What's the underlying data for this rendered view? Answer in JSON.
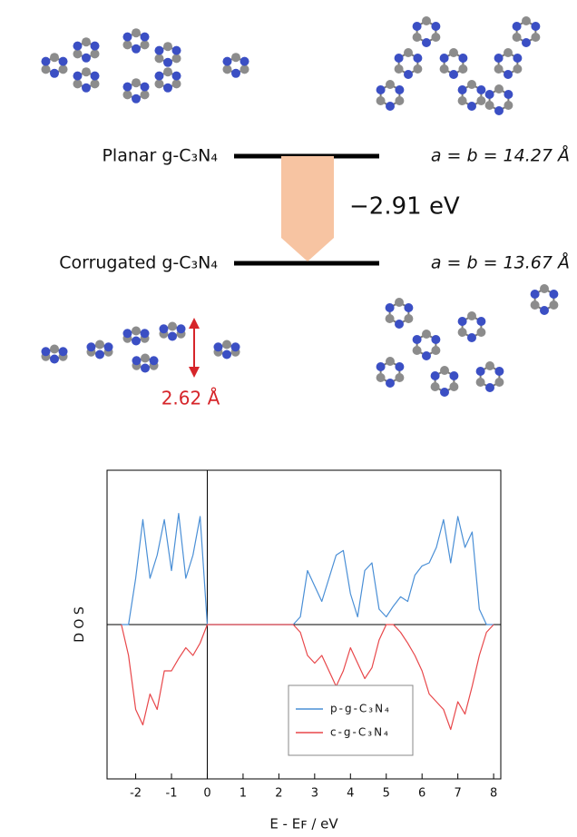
{
  "diagram": {
    "planar_label": "Planar g-C₃N₄",
    "planar_lattice": "a = b = 14.27 Å",
    "energy_change": "−2.91 eV",
    "corrugated_label": "Corrugated g-C₃N₄",
    "corrugated_lattice": "a = b = 13.67 Å",
    "corrugation_height": "2.62 Å"
  },
  "chart_data": {
    "type": "line",
    "xlabel": "E - Eꜰ / eV",
    "ylabel": "D O S",
    "x": [
      -2.4,
      -2.2,
      -2.0,
      -1.8,
      -1.6,
      -1.4,
      -1.2,
      -1.0,
      -0.8,
      -0.6,
      -0.4,
      -0.2,
      0,
      0.2,
      0.4,
      0.6,
      0.8,
      1.0,
      1.2,
      1.4,
      1.6,
      1.8,
      2.0,
      2.2,
      2.4,
      2.6,
      2.8,
      3.0,
      3.2,
      3.4,
      3.6,
      3.8,
      4.0,
      4.2,
      4.4,
      4.6,
      4.8,
      5.0,
      5.2,
      5.4,
      5.6,
      5.8,
      6.0,
      6.2,
      6.4,
      6.6,
      6.8,
      7.0,
      7.2,
      7.4,
      7.6,
      7.8,
      8.0
    ],
    "series": [
      {
        "name": "p-g-C₃N₄",
        "color": "#4a8fd6",
        "values": [
          0,
          0,
          0.3,
          0.68,
          0.3,
          0.45,
          0.68,
          0.35,
          0.72,
          0.3,
          0.45,
          0.7,
          0,
          0,
          0,
          0,
          0,
          0,
          0,
          0,
          0,
          0,
          0,
          0,
          0,
          0.05,
          0.35,
          0.25,
          0.15,
          0.3,
          0.45,
          0.48,
          0.2,
          0.05,
          0.35,
          0.4,
          0.1,
          0.05,
          0.12,
          0.18,
          0.15,
          0.32,
          0.38,
          0.4,
          0.5,
          0.68,
          0.4,
          0.7,
          0.5,
          0.6,
          0.1,
          0,
          0
        ]
      },
      {
        "name": "c-g-C₃N₄",
        "color": "#e8474a",
        "values": [
          0,
          -0.2,
          -0.55,
          -0.65,
          -0.45,
          -0.55,
          -0.3,
          -0.3,
          -0.22,
          -0.15,
          -0.2,
          -0.12,
          0,
          0,
          0,
          0,
          0,
          0,
          0,
          0,
          0,
          0,
          0,
          0,
          0,
          -0.05,
          -0.2,
          -0.25,
          -0.2,
          -0.3,
          -0.4,
          -0.3,
          -0.15,
          -0.25,
          -0.35,
          -0.28,
          -0.1,
          0,
          0,
          -0.05,
          -0.12,
          -0.2,
          -0.3,
          -0.45,
          -0.5,
          -0.55,
          -0.68,
          -0.5,
          -0.58,
          -0.4,
          -0.2,
          -0.05,
          0
        ]
      }
    ],
    "xlim": [
      -2.8,
      8.2
    ],
    "xticks": [
      -2,
      -1,
      0,
      1,
      2,
      3,
      4,
      5,
      6,
      7,
      8
    ],
    "ylim": [
      -1,
      1
    ],
    "vline": 0,
    "legend": "lower right"
  }
}
